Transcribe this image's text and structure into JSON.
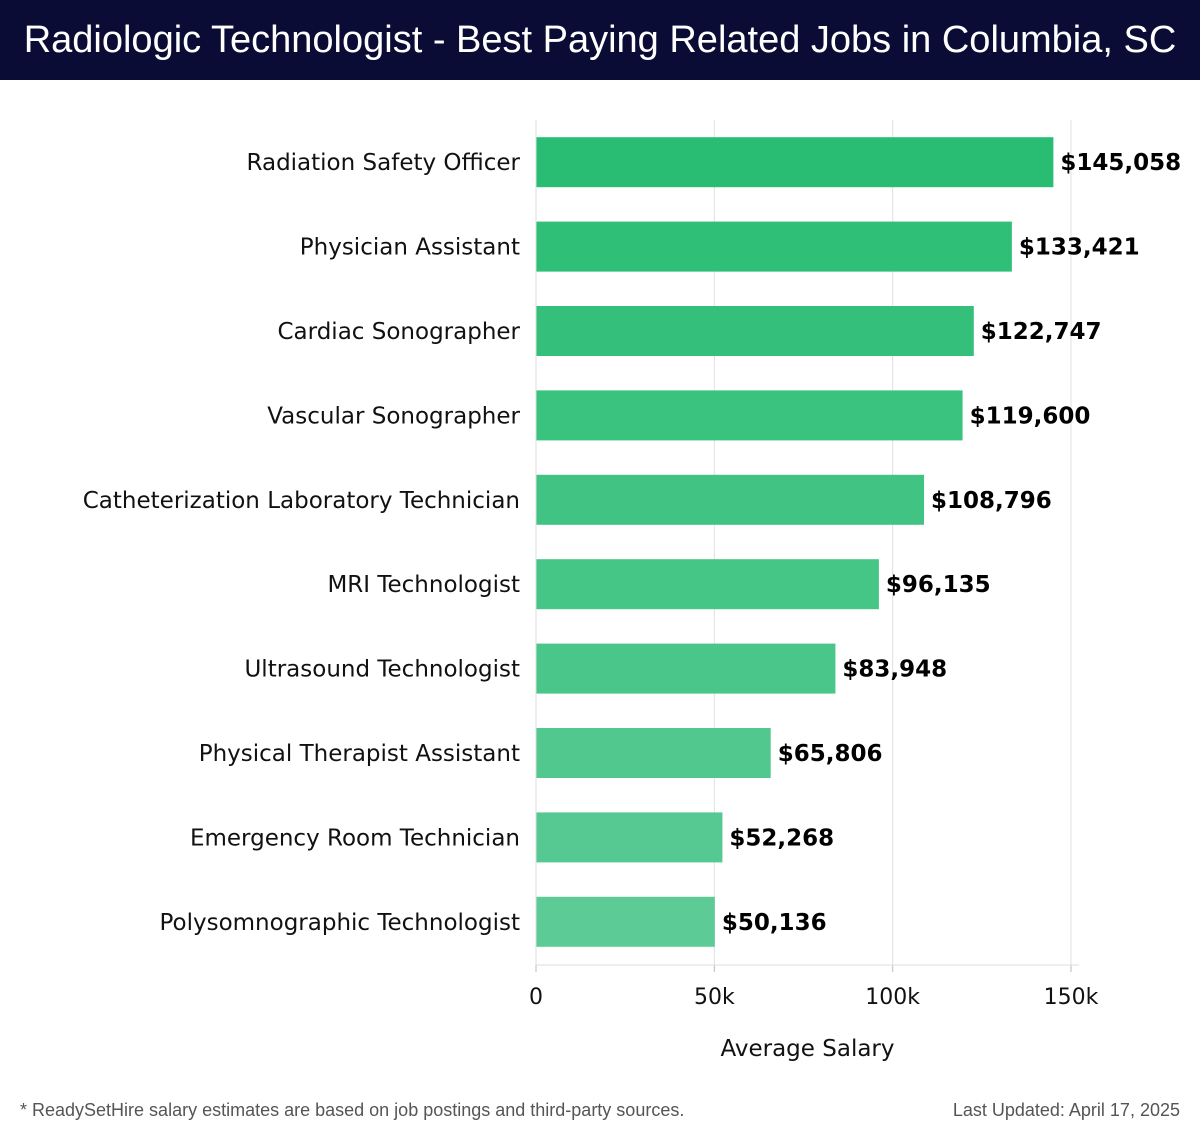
{
  "header": {
    "title": "Radiologic Technologist - Best Paying Related Jobs in Columbia, SC"
  },
  "footer": {
    "note": "* ReadySetHire salary estimates are based on job postings and third-party sources.",
    "updated": "Last Updated: April 17, 2025"
  },
  "colors": {
    "title_background": "#0b0c35",
    "bar_high": "#29bd73",
    "bar_low": "#5ccb96",
    "grid": "#e0e0e0"
  },
  "chart_data": {
    "type": "bar",
    "orientation": "horizontal",
    "title": "",
    "xlabel": "Average Salary",
    "ylabel": "",
    "xlim": [
      0,
      150000
    ],
    "xticks": [
      0,
      50000,
      100000,
      150000
    ],
    "xtick_labels": [
      "0",
      "50k",
      "100k",
      "150k"
    ],
    "grid": true,
    "legend": "none",
    "categories": [
      "Radiation Safety Officer",
      "Physician Assistant",
      "Cardiac Sonographer",
      "Vascular Sonographer",
      "Catheterization Laboratory Technician",
      "MRI Technologist",
      "Ultrasound Technologist",
      "Physical Therapist Assistant",
      "Emergency Room Technician",
      "Polysomnographic Technologist"
    ],
    "values": [
      145058,
      133421,
      122747,
      119600,
      108796,
      96135,
      83948,
      65806,
      52268,
      50136
    ],
    "value_labels": [
      "$145,058",
      "$133,421",
      "$122,747",
      "$119,600",
      "$108,796",
      "$96,135",
      "$83,948",
      "$65,806",
      "$52,268",
      "$50,136"
    ]
  }
}
